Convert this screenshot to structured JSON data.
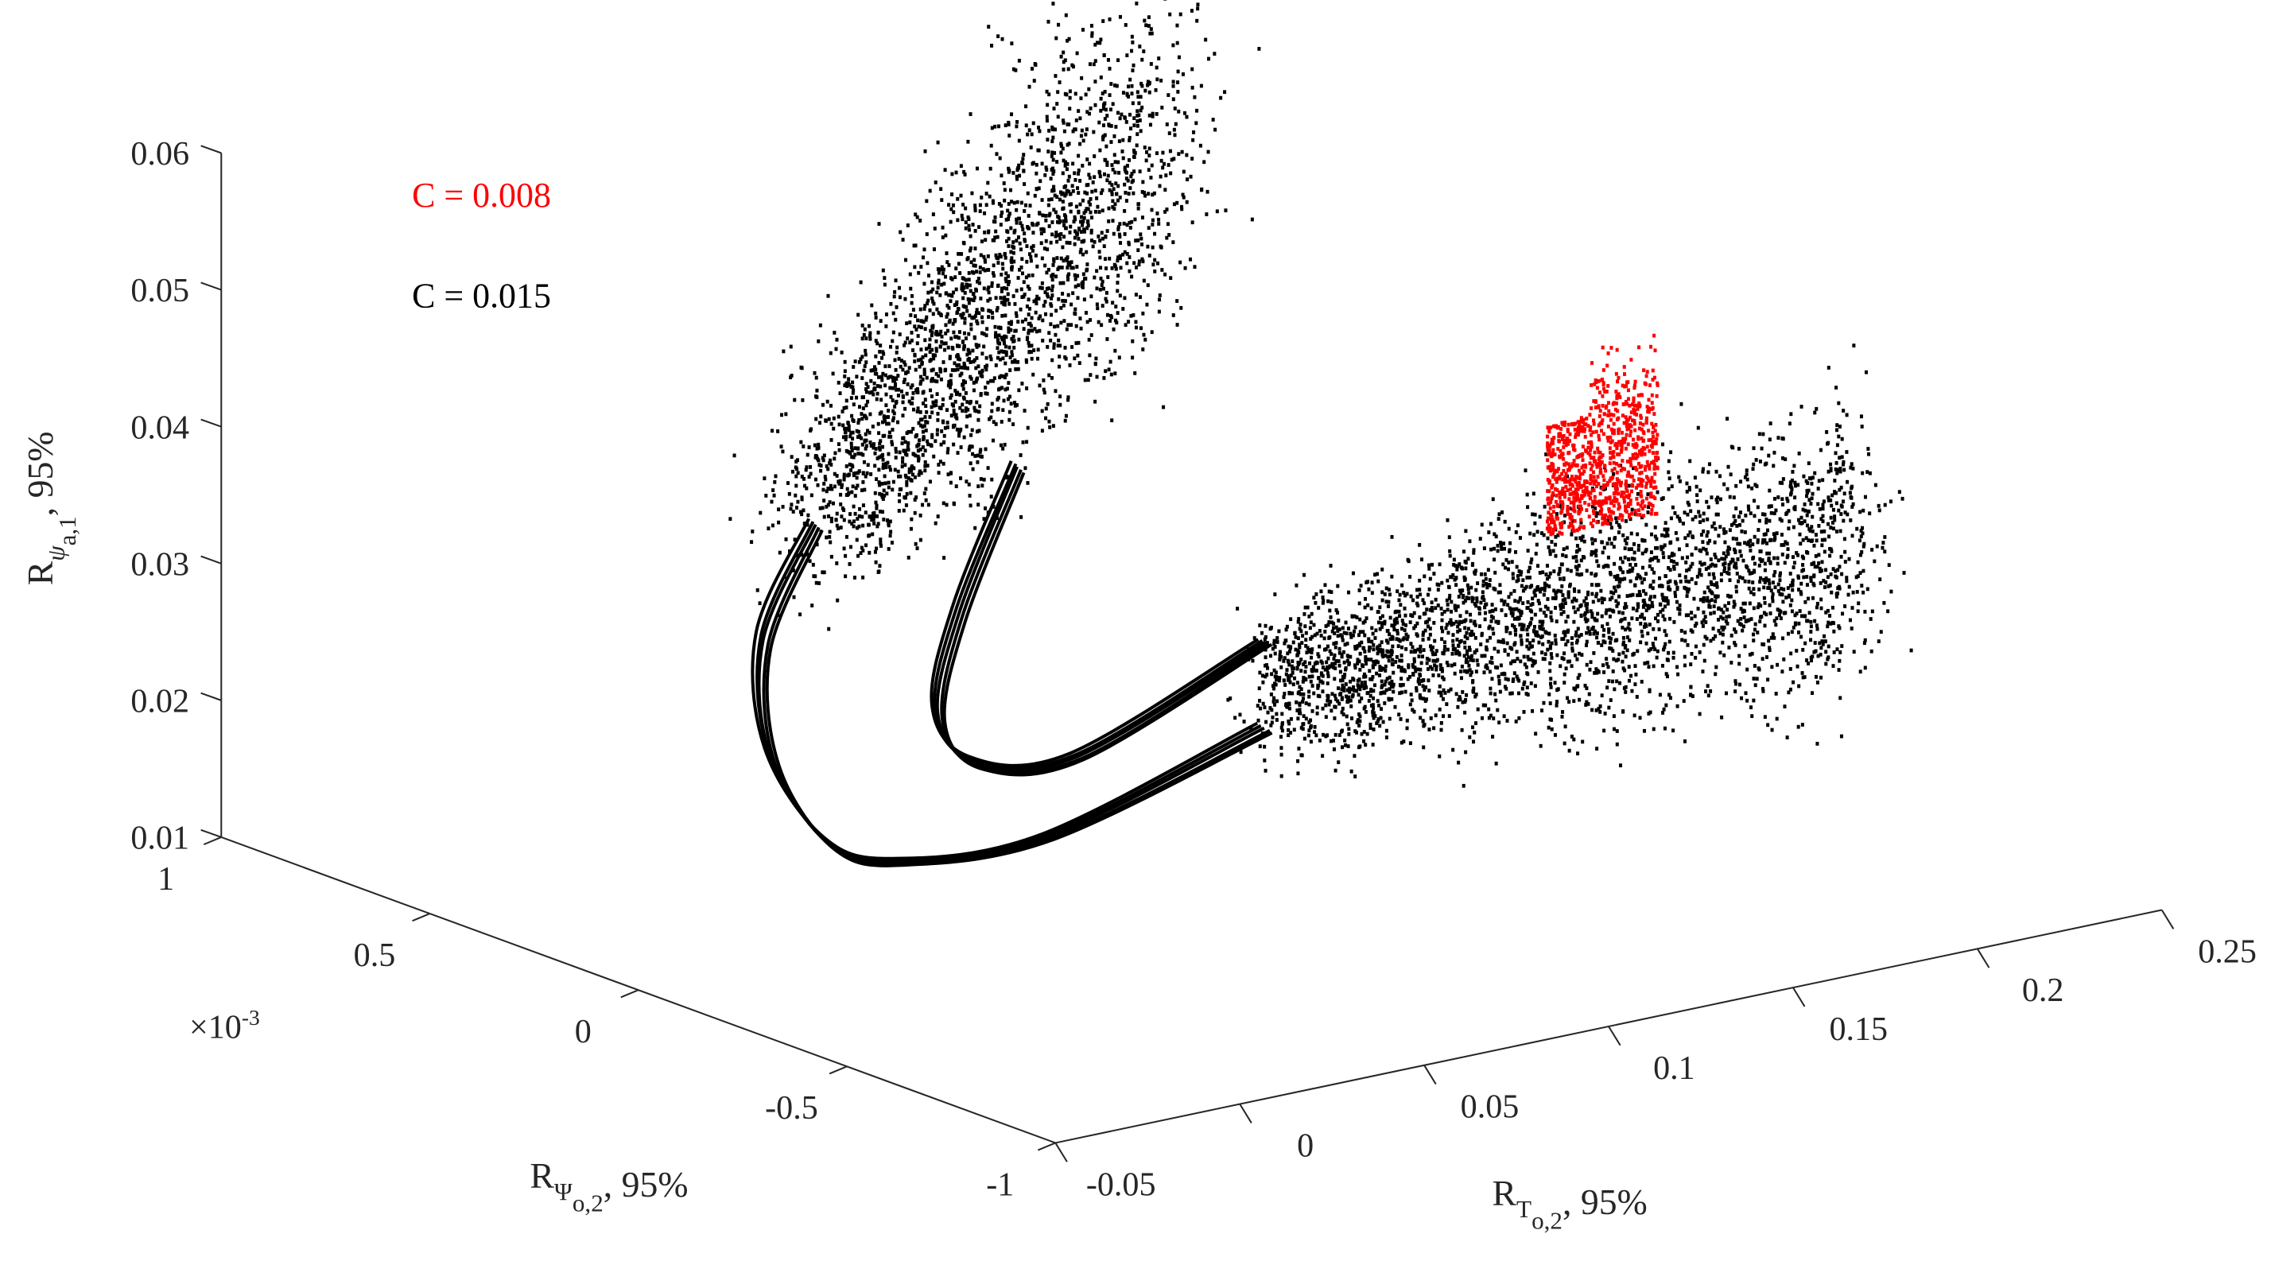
{
  "chart_data": {
    "type": "scatter3d",
    "title": "",
    "xlabel": {
      "main": "R",
      "sub": "T",
      "subsub": "o,2",
      "suffix": ", 95%"
    },
    "ylabel": {
      "main": "R",
      "sub": "Ψ",
      "subsub": "o,2",
      "suffix": ", 95%"
    },
    "zlabel": {
      "main": "R",
      "sub": "ψ",
      "subsub": "a,1",
      "suffix": ", 95%"
    },
    "y_multiplier": "×10",
    "y_multiplier_exp": "-3",
    "xlim": [
      -0.05,
      0.25
    ],
    "ylim": [
      -1,
      1
    ],
    "zlim": [
      0.01,
      0.06
    ],
    "xticks": [
      "-0.05",
      "0",
      "0.05",
      "0.1",
      "0.15",
      "0.2",
      "0.25"
    ],
    "xtick_values": [
      -0.05,
      0,
      0.05,
      0.1,
      0.15,
      0.2,
      0.25
    ],
    "yticks": [
      "-1",
      "-0.5",
      "0",
      "0.5",
      "1"
    ],
    "ytick_values": [
      -1,
      -0.5,
      0,
      0.5,
      1
    ],
    "zticks": [
      "0.01",
      "0.02",
      "0.03",
      "0.04",
      "0.05",
      "0.06"
    ],
    "ztick_values": [
      0.01,
      0.02,
      0.03,
      0.04,
      0.05,
      0.06
    ],
    "grid": false,
    "legend_placement": "top-left",
    "legend": [
      {
        "label": "C = 0.008",
        "color": "#ff0000"
      },
      {
        "label": "C = 0.015",
        "color": "#000000"
      }
    ],
    "series": [
      {
        "name": "C = 0.015 outer trajectory",
        "color": "#000000",
        "kind": "curve",
        "copies": 5,
        "points": [
          [
            -0.002,
            0,
            0.0413
          ],
          [
            -0.016,
            0,
            0.0336
          ],
          [
            -0.014,
            0,
            0.025
          ],
          [
            0.002,
            0,
            0.0177
          ],
          [
            0.022,
            0,
            0.0153
          ],
          [
            0.061,
            0,
            0.0149
          ],
          [
            0.12,
            0,
            0.0195
          ]
        ]
      },
      {
        "name": "C = 0.015 inner trajectory",
        "color": "#000000",
        "kind": "curve",
        "copies": 5,
        "points": [
          [
            0.053,
            0,
            0.0424
          ],
          [
            0.037,
            0,
            0.0327
          ],
          [
            0.0315,
            0,
            0.0256
          ],
          [
            0.0415,
            0,
            0.0214
          ],
          [
            0.069,
            0,
            0.0203
          ],
          [
            0.12,
            0,
            0.0258
          ]
        ]
      },
      {
        "name": "C = 0.015 upper cloud",
        "color": "#000000",
        "kind": "cloud",
        "count": 2600,
        "from": [
          0.002,
          0,
          0.0432
        ],
        "to": [
          0.0888,
          0,
          0.066
        ],
        "spread_x": 0.012,
        "spread_z": 0.006
      },
      {
        "name": "C = 0.015 lower cloud",
        "color": "#000000",
        "kind": "cloud",
        "count": 3200,
        "from": [
          0.12,
          0,
          0.0227
        ],
        "to": [
          0.282,
          0,
          0.0241
        ],
        "spread_x": 0.006,
        "spread_z": 0.0045
      },
      {
        "name": "C = 0.008 cloud",
        "color": "#ff0000",
        "kind": "box",
        "count": 900,
        "xrange": [
          0.196,
          0.226
        ],
        "zrange": [
          0.0293,
          0.0375
        ],
        "peak_z": 0.0436,
        "psi": 0
      }
    ]
  }
}
